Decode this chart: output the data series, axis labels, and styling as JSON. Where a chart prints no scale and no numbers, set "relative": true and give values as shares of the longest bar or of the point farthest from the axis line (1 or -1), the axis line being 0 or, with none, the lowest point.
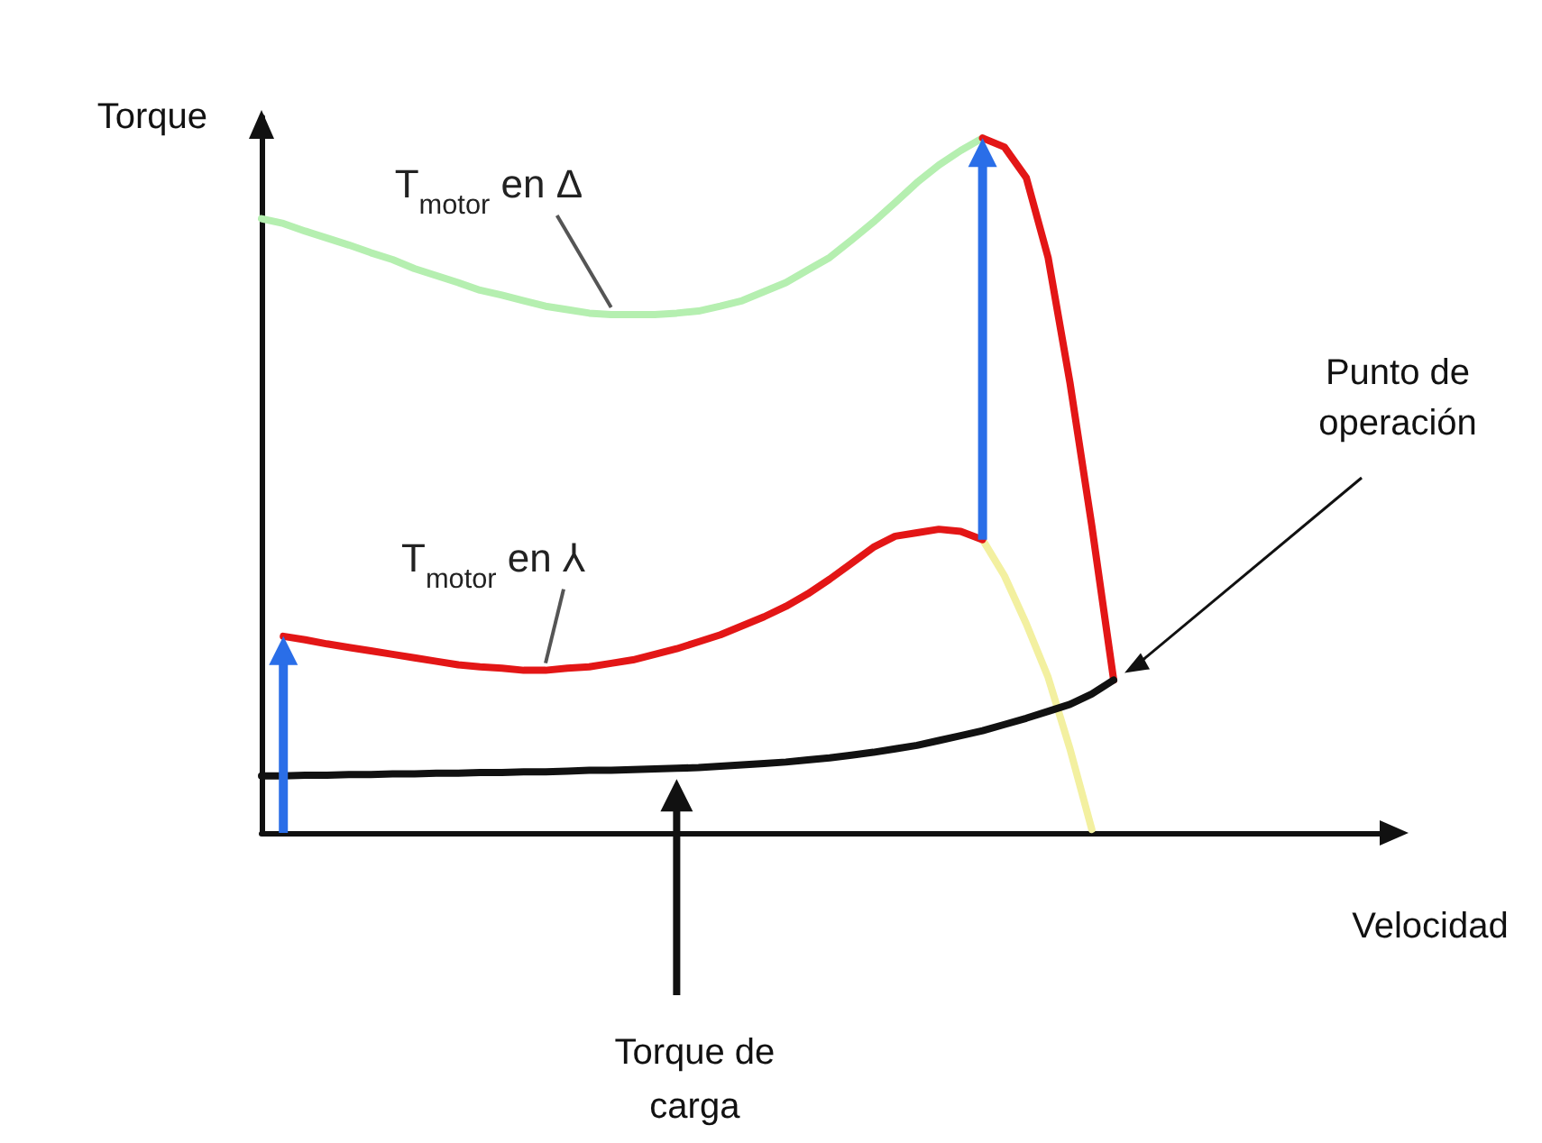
{
  "chart_data": {
    "type": "line",
    "relative": true,
    "xlabel": "Velocidad",
    "ylabel": "Torque",
    "grid": false,
    "marker": "none",
    "line_style": "solid",
    "categories": [
      null,
      null,
      null,
      null,
      null,
      null,
      null,
      null,
      null,
      null,
      null,
      null,
      null,
      null,
      null,
      null,
      null,
      null,
      null,
      null,
      null,
      null,
      null,
      null,
      null,
      null,
      null,
      null,
      null,
      null,
      null,
      null,
      null,
      null,
      null,
      null,
      null,
      null,
      null,
      null,
      null,
      null,
      null,
      null,
      null,
      null,
      null,
      null,
      null,
      null,
      null,
      null,
      null
    ],
    "series": [
      {
        "color": "#b5efb0",
        "values": [
          0.884,
          0.877,
          0.866,
          0.856,
          0.846,
          0.835,
          0.825,
          0.812,
          0.802,
          0.792,
          0.781,
          0.774,
          0.766,
          0.758,
          0.753,
          0.748,
          0.746,
          0.746,
          0.746,
          0.748,
          0.751,
          0.758,
          0.766,
          0.779,
          0.792,
          0.81,
          0.828,
          0.853,
          0.879,
          0.907,
          0.936,
          0.961,
          0.982,
          1,
          null,
          null,
          null,
          null,
          null,
          null,
          null,
          null,
          null,
          null,
          null,
          null,
          null,
          null,
          null,
          null,
          null,
          null,
          null
        ]
      },
      {
        "color": "#e31616",
        "values": [
          null,
          null,
          null,
          null,
          null,
          null,
          null,
          null,
          null,
          null,
          null,
          null,
          null,
          null,
          null,
          null,
          null,
          null,
          null,
          null,
          null,
          null,
          null,
          null,
          null,
          null,
          null,
          null,
          null,
          null,
          null,
          null,
          null,
          1,
          0.987,
          0.943,
          0.828,
          0.648,
          0.442,
          0.22,
          null,
          null,
          null,
          null,
          null,
          null,
          null,
          null,
          null,
          null,
          null,
          null,
          null
        ]
      },
      {
        "color": "#f3f0a0",
        "values": [
          null,
          null,
          null,
          null,
          null,
          null,
          null,
          null,
          null,
          null,
          null,
          null,
          null,
          null,
          null,
          null,
          null,
          null,
          null,
          null,
          null,
          null,
          null,
          null,
          null,
          null,
          null,
          null,
          null,
          null,
          null,
          null,
          null,
          0.422,
          0.37,
          0.301,
          0.224,
          0.121,
          0.005,
          null,
          null,
          null,
          null,
          null,
          null,
          null,
          null,
          null,
          null,
          null,
          null,
          null,
          null
        ]
      },
      {
        "color": "#e31616",
        "values": [
          null,
          0.283,
          0.278,
          0.272,
          0.267,
          0.262,
          0.257,
          0.252,
          0.247,
          0.242,
          0.239,
          0.237,
          0.234,
          0.234,
          0.237,
          0.239,
          0.244,
          0.249,
          0.257,
          0.265,
          0.275,
          0.285,
          0.298,
          0.311,
          0.326,
          0.344,
          0.365,
          0.388,
          0.411,
          0.427,
          0.432,
          0.437,
          0.434,
          0.422,
          null,
          null,
          null,
          null,
          null,
          null,
          null,
          null,
          null,
          null,
          null,
          null,
          null,
          null,
          null,
          null,
          null,
          null,
          null
        ]
      },
      {
        "color": "#111111",
        "values": [
          0.082,
          0.082,
          0.083,
          0.083,
          0.084,
          0.084,
          0.085,
          0.085,
          0.086,
          0.086,
          0.087,
          0.087,
          0.088,
          0.088,
          0.089,
          0.09,
          0.09,
          0.091,
          0.092,
          0.093,
          0.094,
          0.096,
          0.098,
          0.1,
          0.102,
          0.105,
          0.108,
          0.112,
          0.116,
          0.121,
          0.126,
          0.133,
          0.14,
          0.147,
          0.156,
          0.165,
          0.175,
          0.185,
          0.2,
          0.22,
          null,
          null,
          null,
          null,
          null,
          null,
          null,
          null,
          null,
          null,
          null,
          null,
          null
        ]
      }
    ],
    "annotations": [
      "T$_{motor}$en Δ",
      "T$_{motor}$en ⅄",
      "Punto de operación",
      "Torque de carga"
    ]
  }
}
